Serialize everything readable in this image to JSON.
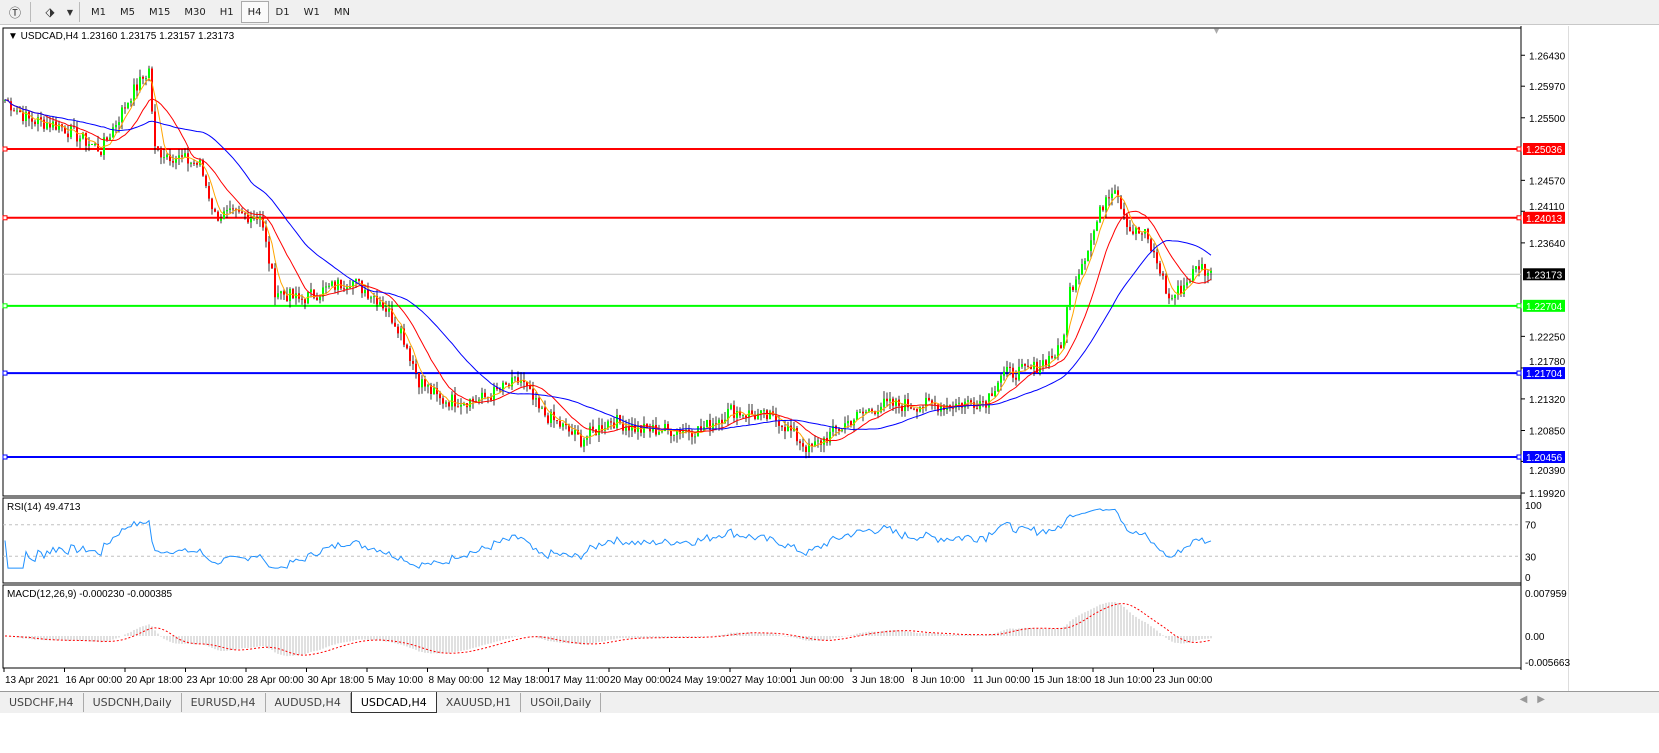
{
  "toolbar": {
    "icons": [
      "text-icon",
      "arrows-icon",
      "dropdown-icon"
    ],
    "timeframes": [
      "M1",
      "M5",
      "M15",
      "M30",
      "H1",
      "H4",
      "D1",
      "W1",
      "MN"
    ],
    "active": "H4"
  },
  "chart": {
    "header": "USDCAD,H4  1.23160 1.23175 1.23157 1.23173",
    "price_ticks": [
      "1.26430",
      "1.25970",
      "1.25500",
      "1.24570",
      "1.24110",
      "1.23640",
      "1.22250",
      "1.21780",
      "1.21320",
      "1.20850",
      "1.20390",
      "1.19920"
    ],
    "price_tick_values": [
      1.2643,
      1.2597,
      1.255,
      1.2457,
      1.2411,
      1.2364,
      1.2225,
      1.2178,
      1.2132,
      1.2085,
      1.2039,
      1.1992
    ],
    "hlines": [
      {
        "label": "1.25036",
        "value": 1.25036,
        "color": "#ff0000"
      },
      {
        "label": "1.24013",
        "value": 1.24013,
        "color": "#ff0000"
      },
      {
        "label": "1.22704",
        "value": 1.22704,
        "color": "#00ff00"
      },
      {
        "label": "1.21704",
        "value": 1.21704,
        "color": "#0000ff"
      },
      {
        "label": "1.20456",
        "value": 1.20456,
        "color": "#0000ff"
      }
    ],
    "current_price": {
      "label": "1.23173",
      "value": 1.23173
    },
    "price_path": [
      [
        0,
        1.2577
      ],
      [
        8,
        1.2547
      ],
      [
        18,
        1.2539
      ],
      [
        32,
        1.2502
      ],
      [
        42,
        1.2584
      ],
      [
        48,
        1.2621
      ],
      [
        50,
        1.2502
      ],
      [
        65,
        1.248
      ],
      [
        70,
        1.2405
      ],
      [
        85,
        1.2405
      ],
      [
        90,
        1.2294
      ],
      [
        98,
        1.2279
      ],
      [
        115,
        1.2309
      ],
      [
        125,
        1.2279
      ],
      [
        132,
        1.2234
      ],
      [
        138,
        1.216
      ],
      [
        145,
        1.213
      ],
      [
        158,
        1.213
      ],
      [
        172,
        1.216
      ],
      [
        178,
        1.2115
      ],
      [
        192,
        1.2071
      ],
      [
        202,
        1.2101
      ],
      [
        212,
        1.2086
      ],
      [
        232,
        1.2086
      ],
      [
        242,
        1.2115
      ],
      [
        258,
        1.2101
      ],
      [
        268,
        1.2056
      ],
      [
        282,
        1.2101
      ],
      [
        292,
        1.2123
      ],
      [
        315,
        1.2123
      ],
      [
        327,
        1.213
      ],
      [
        332,
        1.2168
      ],
      [
        342,
        1.2175
      ],
      [
        352,
        1.2205
      ],
      [
        355,
        1.2294
      ],
      [
        362,
        1.2368
      ],
      [
        367,
        1.2435
      ],
      [
        370,
        1.245
      ],
      [
        375,
        1.2383
      ],
      [
        380,
        1.2376
      ],
      [
        385,
        1.2324
      ],
      [
        388,
        1.2279
      ],
      [
        393,
        1.2301
      ],
      [
        398,
        1.2331
      ],
      [
        402,
        1.2317
      ]
    ],
    "candle_colors": {
      "up": "#00ff00",
      "down": "#ff0000",
      "wick": "#000000"
    },
    "ma_colors": [
      "#ffa500",
      "#ff0000",
      "#0000ff"
    ]
  },
  "rsi": {
    "label": "RSI(14) 49.4713",
    "ticks": [
      "100",
      "70",
      "30",
      "0"
    ],
    "color": "#1e90ff"
  },
  "macd": {
    "label": "MACD(12,26,9) -0.000230 -0.000385",
    "ticks": [
      "0.007959",
      "0.00",
      "-0.005663"
    ],
    "hist_color": "#c0c0c0",
    "signal_color": "#ff0000"
  },
  "time_axis": [
    "13 Apr 2021",
    "16 Apr 00:00",
    "20 Apr 18:00",
    "23 Apr 10:00",
    "28 Apr 00:00",
    "30 Apr 18:00",
    "5 May 10:00",
    "8 May 00:00",
    "12 May 18:00",
    "17 May 11:00",
    "20 May 00:00",
    "24 May 19:00",
    "27 May 10:00",
    "1 Jun 00:00",
    "3 Jun 18:00",
    "8 Jun 10:00",
    "11 Jun 00:00",
    "15 Jun 18:00",
    "18 Jun 10:00",
    "23 Jun 00:00"
  ],
  "tabs": [
    "USDCHF,H4",
    "USDCNH,Daily",
    "EURUSD,H4",
    "AUDUSD,H4",
    "USDCAD,H4",
    "XAUUSD,H1",
    "USOil,Daily"
  ],
  "active_tab": "USDCAD,H4"
}
